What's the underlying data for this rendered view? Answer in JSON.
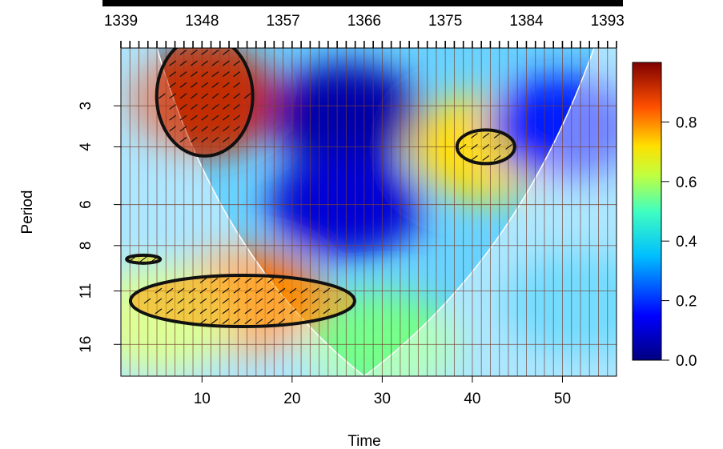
{
  "chart_data": {
    "type": "heatmap",
    "title": "",
    "xlabel": "Time",
    "ylabel": "Period",
    "x_range": [
      1,
      56
    ],
    "x_ticks": [
      10,
      20,
      30,
      40,
      50
    ],
    "top_axis_ticks": [
      {
        "time": 1,
        "label": "1339"
      },
      {
        "time": 10,
        "label": "1348"
      },
      {
        "time": 19,
        "label": "1357"
      },
      {
        "time": 28,
        "label": "1366"
      },
      {
        "time": 37,
        "label": "1375"
      },
      {
        "time": 46,
        "label": "1384"
      },
      {
        "time": 55,
        "label": "1393"
      }
    ],
    "y_scale": "log2",
    "y_range": [
      2,
      20
    ],
    "y_ticks": [
      "3",
      "4",
      "6",
      "8",
      "11",
      "16"
    ],
    "color_range": [
      0,
      1
    ],
    "colorbar_ticks": [
      "0.0",
      "0.2",
      "0.4",
      "0.6",
      "0.8"
    ],
    "grid": true,
    "cone_of_influence": true,
    "significant_regions": [
      {
        "x_center": 10.3,
        "period_center": 2.8,
        "power": 0.92
      },
      {
        "x_center": 41.5,
        "period_center": 4.0,
        "power": 0.72
      },
      {
        "x_center": 14.5,
        "period_center": 11.8,
        "power": 0.78
      },
      {
        "x_center": 3.5,
        "period_center": 8.8,
        "power": 0.7
      }
    ],
    "power_field": [
      {
        "x": 10.5,
        "period": 2.9,
        "power": 0.92
      },
      {
        "x": 26,
        "period": 3.2,
        "power": 0.05
      },
      {
        "x": 26,
        "period": 6.0,
        "power": 0.1
      },
      {
        "x": 41.5,
        "period": 4.0,
        "power": 0.72
      },
      {
        "x": 15,
        "period": 11.8,
        "power": 0.82
      },
      {
        "x": 5,
        "period": 13.5,
        "power": 0.62
      },
      {
        "x": 50,
        "period": 3.5,
        "power": 0.18
      },
      {
        "x": 52,
        "period": 12,
        "power": 0.35
      },
      {
        "x": 30,
        "period": 16,
        "power": 0.55
      }
    ]
  }
}
